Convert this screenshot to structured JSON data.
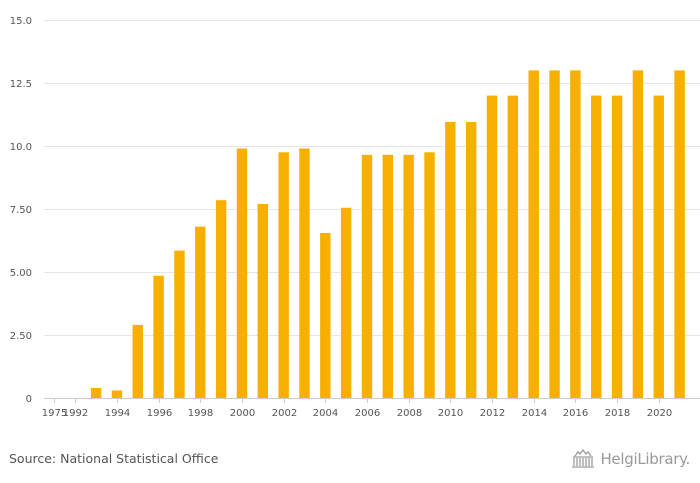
{
  "chart_data": {
    "type": "bar",
    "categories": [
      "1975",
      "1992",
      "1993",
      "1994",
      "1995",
      "1996",
      "1997",
      "1998",
      "1999",
      "2000",
      "2001",
      "2002",
      "2003",
      "2004",
      "2005",
      "2006",
      "2007",
      "2008",
      "2009",
      "2010",
      "2011",
      "2012",
      "2013",
      "2014",
      "2015",
      "2016",
      "2017",
      "2018",
      "2019",
      "2020",
      "2021"
    ],
    "values": [
      0,
      0,
      0.4,
      0.3,
      2.9,
      4.85,
      5.85,
      6.8,
      7.85,
      9.9,
      7.7,
      9.75,
      9.9,
      6.55,
      7.55,
      9.65,
      9.65,
      9.65,
      9.75,
      10.95,
      10.95,
      12.0,
      12.0,
      13.0,
      13.0,
      13.0,
      12.0,
      12.0,
      13.0,
      12.0,
      13.0
    ],
    "ylim": [
      0,
      15
    ],
    "yticks": [
      0,
      2.5,
      5,
      7.5,
      10,
      12.5,
      15
    ],
    "ytick_labels": [
      "0",
      "2.50",
      "5.00",
      "7.50",
      "10.0",
      "12.5",
      "15.0"
    ],
    "xtick_labels": [
      "1975",
      "1992",
      "1994",
      "1996",
      "1998",
      "2000",
      "2002",
      "2004",
      "2006",
      "2008",
      "2010",
      "2012",
      "2014",
      "2016",
      "2018",
      "2020"
    ],
    "title": "",
    "xlabel": "",
    "ylabel": "",
    "grid": true,
    "bar_color": "#f7b000"
  },
  "footer": {
    "source": "Source: National Statistical Office",
    "brand": "HelgiLibrary."
  },
  "colors": {
    "grid": "#e6e6e6",
    "axis": "#cccccc",
    "text": "#555555",
    "brand": "#9a9a9a"
  }
}
